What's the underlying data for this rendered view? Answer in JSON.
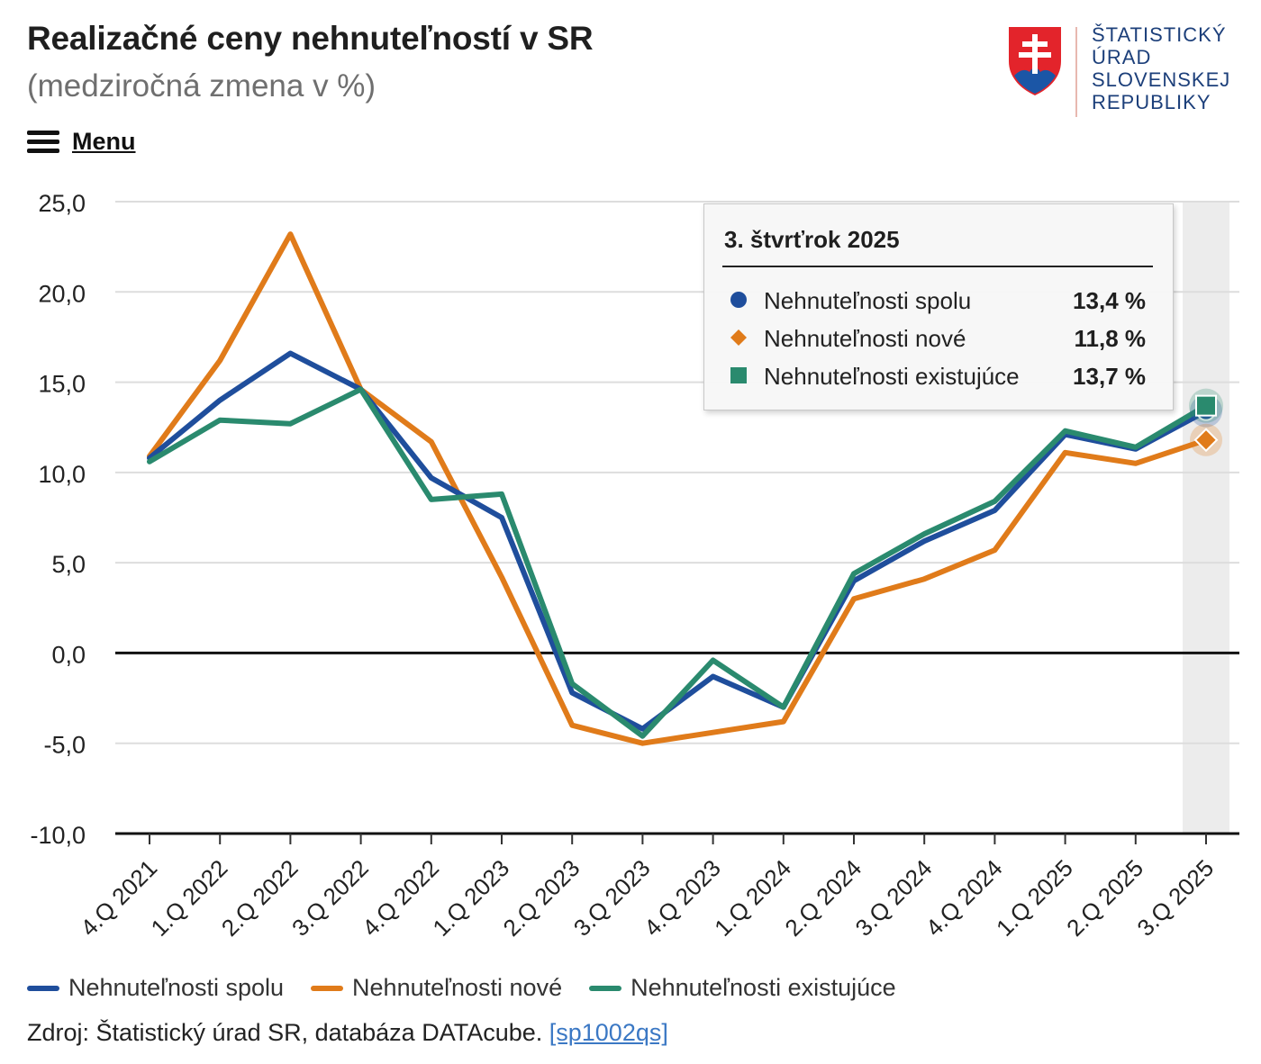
{
  "header": {
    "title": "Realizačné ceny nehnuteľností v SR",
    "subtitle": "(medziročná zmena v %)"
  },
  "menu": {
    "label": "Menu",
    "icon": "hamburger-icon"
  },
  "logo": {
    "lines": [
      "ŠTATISTICKÝ",
      "ÚRAD",
      "SLOVENSKEJ",
      "REPUBLIKY"
    ],
    "icon": "slovak-coat-of-arms-icon",
    "colors": {
      "red": "#e3242b",
      "blue": "#1b56a6",
      "white": "#ffffff"
    }
  },
  "tooltip": {
    "title": "3. štvrťrok 2025",
    "rows": [
      {
        "name": "Nehnuteľnosti spolu",
        "value": "13,4 %",
        "marker": "circle",
        "color": "#1f4e9c"
      },
      {
        "name": "Nehnuteľnosti nové",
        "value": "11,8 %",
        "marker": "diamond",
        "color": "#e07b1a"
      },
      {
        "name": "Nehnuteľnosti existujúce",
        "value": "13,7 %",
        "marker": "square",
        "color": "#2a8a6e"
      }
    ]
  },
  "chart_data": {
    "type": "line",
    "title": "Realizačné ceny nehnuteľností v SR",
    "subtitle": "(medziročná zmena v %)",
    "categories": [
      "4.Q 2021",
      "1.Q 2022",
      "2.Q 2022",
      "3.Q 2022",
      "4.Q 2022",
      "1.Q 2023",
      "2.Q 2023",
      "3.Q 2023",
      "4.Q 2023",
      "1.Q 2024",
      "2.Q 2024",
      "3.Q 2024",
      "4.Q 2024",
      "1.Q 2025",
      "2.Q 2025",
      "3.Q 2025"
    ],
    "y_ticks": [
      "25,0",
      "20,0",
      "15,0",
      "10,0",
      "5,0",
      "0,0",
      "-5,0",
      "-10,0"
    ],
    "ylim": [
      -10,
      25
    ],
    "grid": true,
    "highlight_category": "3.Q 2025",
    "series": [
      {
        "name": "Nehnuteľnosti spolu",
        "color": "#1f4e9c",
        "values": [
          10.8,
          14.0,
          16.6,
          14.6,
          9.7,
          7.5,
          -2.2,
          -4.2,
          -1.3,
          -3.0,
          4.0,
          6.2,
          7.9,
          12.1,
          11.3,
          13.4
        ]
      },
      {
        "name": "Nehnuteľnosti nové",
        "color": "#e07b1a",
        "values": [
          10.9,
          16.2,
          23.2,
          14.6,
          11.7,
          4.2,
          -4.0,
          -5.0,
          -4.4,
          -3.8,
          3.0,
          4.1,
          5.7,
          11.1,
          10.5,
          11.8
        ]
      },
      {
        "name": "Nehnuteľnosti existujúce",
        "color": "#2a8a6e",
        "values": [
          10.6,
          12.9,
          12.7,
          14.6,
          8.5,
          8.8,
          -1.7,
          -4.6,
          -0.4,
          -3.0,
          4.4,
          6.6,
          8.4,
          12.3,
          11.4,
          13.7
        ]
      }
    ],
    "legend": "bottom-left"
  },
  "legend": {
    "items": [
      {
        "label": "Nehnuteľnosti spolu",
        "color": "#1f4e9c"
      },
      {
        "label": "Nehnuteľnosti nové",
        "color": "#e07b1a"
      },
      {
        "label": "Nehnuteľnosti existujúce",
        "color": "#2a8a6e"
      }
    ]
  },
  "source": {
    "prefix": "Zdroj: Štatistický úrad SR, databáza DATAcube. ",
    "link": "[sp1002qs]"
  }
}
